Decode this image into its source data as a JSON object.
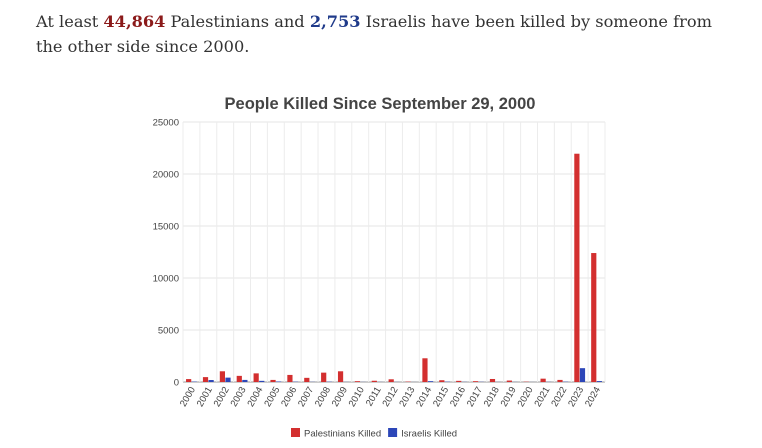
{
  "intro": {
    "prefix": "At least ",
    "palestinians_count": "44,864",
    "middle": " Palestinians and ",
    "israelis_count": "2,753",
    "suffix": " Israelis have been killed by someone from the other side since 2000.",
    "palestinians_color": "#8b1a1a",
    "israelis_color": "#1f3a8a"
  },
  "chart_data": {
    "type": "bar",
    "title": "People Killed Since September 29, 2000",
    "xlabel": "",
    "ylabel": "",
    "ylim": [
      0,
      25000
    ],
    "yticks": [
      0,
      5000,
      10000,
      15000,
      20000,
      25000
    ],
    "grid": true,
    "legend_position": "bottom",
    "categories": [
      "2000",
      "2001",
      "2002",
      "2003",
      "2004",
      "2005",
      "2006",
      "2007",
      "2008",
      "2009",
      "2010",
      "2011",
      "2012",
      "2013",
      "2014",
      "2015",
      "2016",
      "2017",
      "2018",
      "2019",
      "2020",
      "2021",
      "2022",
      "2023",
      "2024"
    ],
    "series": [
      {
        "name": "Palestinians Killed",
        "color": "#d32f2f",
        "values": [
          280,
          470,
          1030,
          590,
          830,
          200,
          680,
          400,
          900,
          1030,
          80,
          120,
          260,
          40,
          2280,
          170,
          110,
          80,
          290,
          140,
          30,
          320,
          200,
          21950,
          12400
        ]
      },
      {
        "name": "Israelis Killed",
        "color": "#2c46b8",
        "values": [
          40,
          190,
          420,
          200,
          110,
          50,
          30,
          15,
          30,
          10,
          10,
          10,
          10,
          5,
          80,
          30,
          15,
          20,
          10,
          10,
          5,
          15,
          30,
          1330,
          90
        ]
      }
    ]
  }
}
